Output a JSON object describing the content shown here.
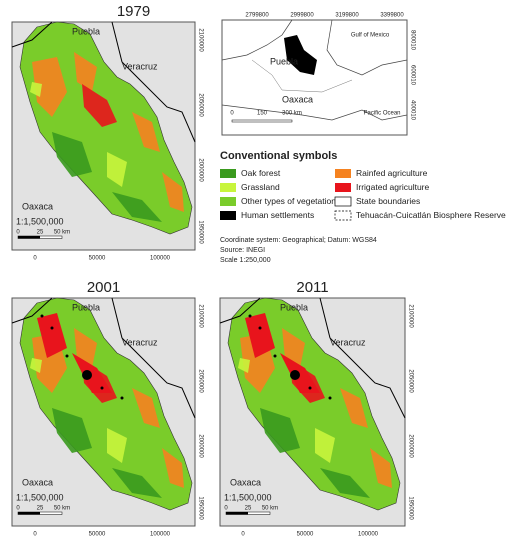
{
  "maps": [
    {
      "title": "1979",
      "labels": {
        "north": "Puebla",
        "east": "Veracruz",
        "south": "Oaxaca"
      },
      "scale": "1:1,500,000",
      "scale_bar": [
        "0",
        "25",
        "50 km"
      ],
      "x_ticks": [
        "0",
        "50000",
        "100000"
      ],
      "y_ticks": [
        "2100000",
        "2050000",
        "2000000",
        "1950000"
      ],
      "settlements": false
    },
    {
      "title": "2001",
      "labels": {
        "north": "Puebla",
        "east": "Veracruz",
        "south": "Oaxaca"
      },
      "scale": "1:1,500,000",
      "scale_bar": [
        "0",
        "25",
        "50 km"
      ],
      "x_ticks": [
        "0",
        "50000",
        "100000"
      ],
      "y_ticks": [
        "2100000",
        "2050000",
        "2000000",
        "1950000"
      ],
      "settlements": true
    },
    {
      "title": "2011",
      "labels": {
        "north": "Puebla",
        "east": "Veracruz",
        "south": "Oaxaca"
      },
      "scale": "1:1,500,000",
      "scale_bar": [
        "0",
        "25",
        "50 km"
      ],
      "x_ticks": [
        "0",
        "50000",
        "100000"
      ],
      "y_ticks": [
        "2100000",
        "2050000",
        "2000000",
        "1950000"
      ],
      "settlements": true
    }
  ],
  "inset": {
    "x_ticks": [
      "2799800",
      "2999800",
      "3199800",
      "3399800"
    ],
    "y_ticks": [
      "800010",
      "600010",
      "400010"
    ],
    "labels": {
      "gulf": "Gulf of Mexico",
      "puebla": "Puebla",
      "oaxaca": "Oaxaca",
      "ocean": "Pacific Ocean"
    },
    "scale_bar": [
      "0",
      "150",
      "300 km"
    ]
  },
  "legend": {
    "title": "Conventional symbols",
    "items": [
      {
        "label": "Oak forest",
        "color": "#3a9a1e"
      },
      {
        "label": "Grassland",
        "color": "#c8f53c"
      },
      {
        "label": "Other types of vegetation",
        "color": "#7acc2a"
      },
      {
        "label": "Human settlements",
        "color": "#000000"
      },
      {
        "label": "Rainfed agriculture",
        "color": "#f58220"
      },
      {
        "label": "Irrigated agriculture",
        "color": "#e8141c"
      },
      {
        "label": "State boundaries",
        "color": "#ffffff"
      },
      {
        "label": "Tehuacán-Cuicatlán Biosphere Reserve",
        "color": "dashed"
      }
    ]
  },
  "notes": [
    "Coordinate system: Geographical; Datum: WGS84",
    "Source: INEGI",
    "Scale 1:250,000"
  ]
}
